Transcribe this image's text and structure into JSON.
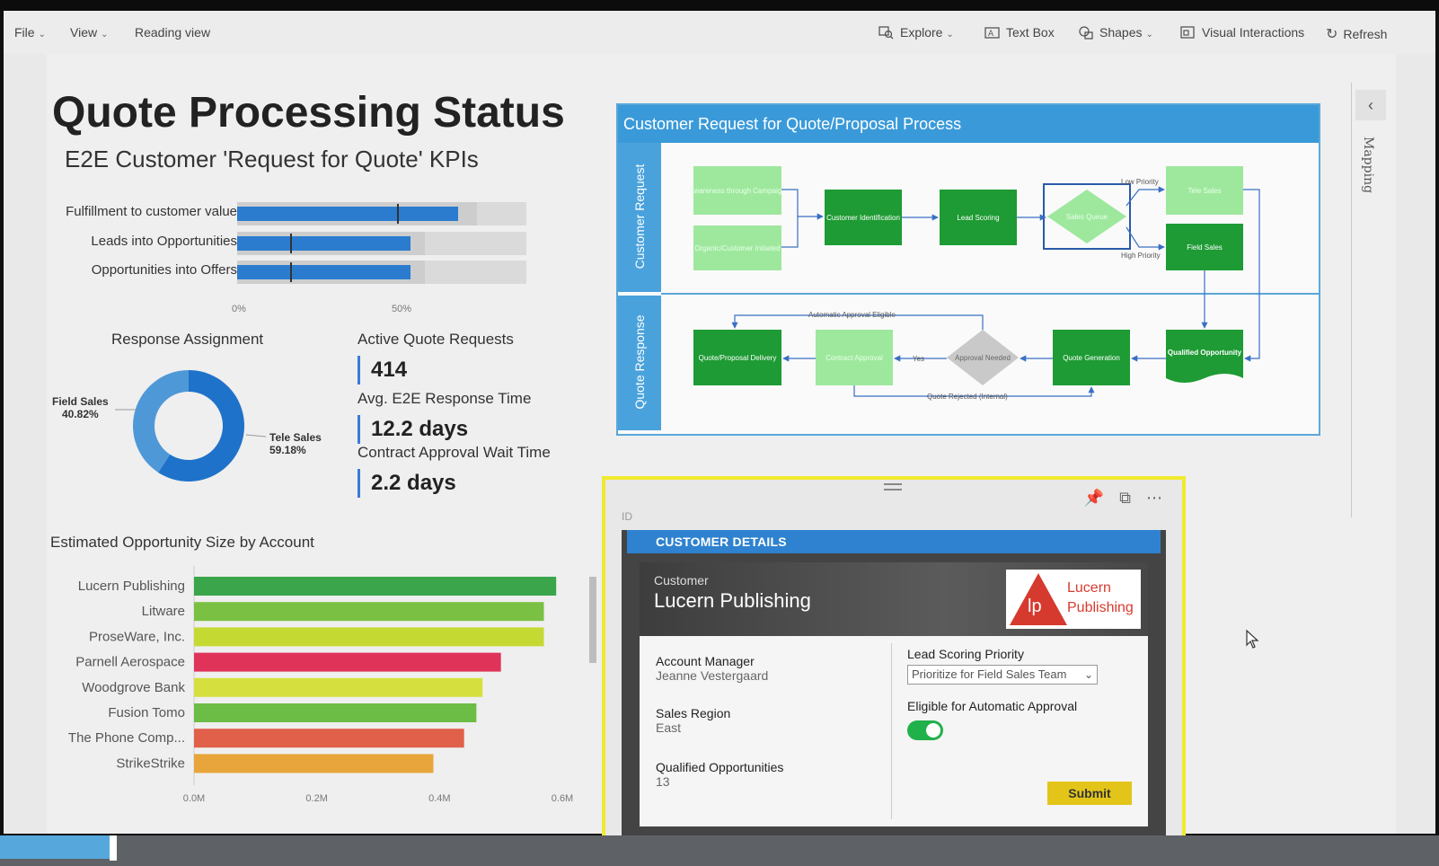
{
  "menu": {
    "file": "File",
    "view": "View",
    "reading_view": "Reading view",
    "explore": "Explore",
    "text_box": "Text Box",
    "shapes": "Shapes",
    "visual_interactions": "Visual Interactions",
    "refresh": "Refresh"
  },
  "side_panel": {
    "label": "Mapping"
  },
  "report": {
    "title": "Quote Processing Status",
    "subtitle": "E2E Customer 'Request for Quote' KPIs"
  },
  "kpi_bullets": {
    "rows": [
      {
        "label": "Fulfillment to customer value",
        "value": 0.83,
        "target": 0.6,
        "band": 0.83
      },
      {
        "label": "Leads into Opportunities",
        "value": 0.65,
        "target": 0.2,
        "band": 0.65
      },
      {
        "label": "Opportunities into Offers",
        "value": 0.65,
        "target": 0.2,
        "band": 0.65
      }
    ],
    "axis": [
      "0%",
      "50%"
    ]
  },
  "response_assignment": {
    "title": "Response Assignment",
    "slices": [
      {
        "name": "Field Sales",
        "pct": "40.82%",
        "value": 40.82,
        "color": "#4f98d8"
      },
      {
        "name": "Tele Sales",
        "pct": "59.18%",
        "value": 59.18,
        "color": "#1f72c9"
      }
    ]
  },
  "metrics": {
    "active_label": "Active Quote Requests",
    "active_value": "414",
    "avg_label": "Avg. E2E Response Time",
    "avg_value": "12.2 days",
    "wait_label": "Contract Approval Wait Time",
    "wait_value": "2.2 days"
  },
  "opportunity_chart_title": "Estimated Opportunity Size by Account",
  "chart_data": {
    "type": "bar",
    "orientation": "horizontal",
    "title": "Estimated Opportunity Size by Account",
    "categories": [
      "Lucern Publishing",
      "Litware",
      "ProseWare, Inc.",
      "Parnell Aerospace",
      "Woodgrove Bank",
      "Fusion Tomo",
      "The Phone Comp...",
      "StrikeStrike"
    ],
    "values": [
      0.59,
      0.57,
      0.57,
      0.5,
      0.47,
      0.46,
      0.44,
      0.39
    ],
    "colors": [
      "#3aa54a",
      "#7ac143",
      "#c5d933",
      "#e0335a",
      "#d5e03e",
      "#6cbd45",
      "#e0604a",
      "#e8a53b"
    ],
    "xlim": [
      0,
      0.6
    ],
    "x_ticks": [
      "0.0M",
      "0.2M",
      "0.4M",
      "0.6M"
    ]
  },
  "process_flow": {
    "title": "Customer Request for Quote/Proposal Process",
    "lanes": [
      "Customer Request",
      "Quote Response"
    ],
    "nodes": {
      "awareness": "Awareness through Campaign",
      "organic": "Organic/Customer Initiated",
      "cust_id": "Customer Identification",
      "lead_scoring": "Lead Scoring",
      "sales_queue": "Sales Queue",
      "tele_sales": "Tele Sales",
      "field_sales": "Field Sales",
      "qualified": "Qualified Opportunity",
      "quote_gen": "Quote Generation",
      "approval": "Approval Needed",
      "contract": "Contract Approval",
      "delivery": "Quote/Proposal Delivery"
    },
    "edges": {
      "low_priority": "Low Priority",
      "high_priority": "High Priority",
      "auto_eligible": "Automatic Approval Eligible",
      "yes": "Yes",
      "rejected": "Quote Rejected (Internal)"
    }
  },
  "customer_card": {
    "id_label": "ID",
    "header": "CUSTOMER DETAILS",
    "customer_label": "Customer",
    "customer_name": "Lucern Publishing",
    "logo_initials": "lp",
    "logo_line1": "Lucern",
    "logo_line2": "Publishing",
    "account_manager_label": "Account Manager",
    "account_manager": "Jeanne Vestergaard",
    "sales_region_label": "Sales Region",
    "sales_region": "East",
    "qualified_label": "Qualified Opportunities",
    "qualified_value": "13",
    "lead_priority_label": "Lead Scoring Priority",
    "lead_priority_value": "Prioritize for Field Sales Team",
    "auto_approval_label": "Eligible for Automatic Approval",
    "auto_approval_on": true,
    "submit": "Submit"
  }
}
